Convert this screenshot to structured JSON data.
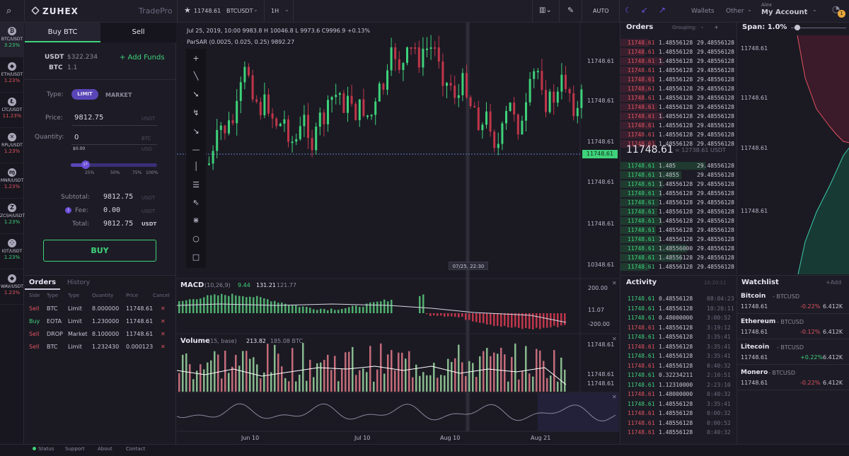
{
  "brand": {
    "name": "ZUHEX",
    "product": "TradePro"
  },
  "header": {
    "price": "11748.61",
    "pair": "BTCUSDT",
    "interval": "1H",
    "auto": "AUTO",
    "nav": [
      "Wallets",
      "Other"
    ],
    "user": "Alex",
    "account": "My Account",
    "badge": "1"
  },
  "coins": [
    {
      "pair": "BTC/USDT",
      "change": "3.23%",
      "dir": "up",
      "icon": "bitcoin-icon",
      "glyph": "₿"
    },
    {
      "pair": "ETH/USDT",
      "change": "1.23%",
      "dir": "down",
      "icon": "ethereum-icon",
      "glyph": "◆"
    },
    {
      "pair": "LTC/USDT",
      "change": "11.23%",
      "dir": "down",
      "icon": "litecoin-icon",
      "glyph": "Ł"
    },
    {
      "pair": "RPL/USDT",
      "change": "1.23%",
      "dir": "down",
      "icon": "ripple-icon",
      "glyph": "✕"
    },
    {
      "pair": "MNR/USDT",
      "change": "1.23%",
      "dir": "down",
      "icon": "monero-icon",
      "glyph": "ɱ"
    },
    {
      "pair": "ZCSH/USDT",
      "change": "1.23%",
      "dir": "up",
      "icon": "zcash-icon",
      "glyph": "Z"
    },
    {
      "pair": "IOT/USDT",
      "change": "1.23%",
      "dir": "up",
      "icon": "iota-icon",
      "glyph": "⁘"
    },
    {
      "pair": "WAV/USDT",
      "change": "1.23%",
      "dir": "down",
      "icon": "waves-icon",
      "glyph": "◆"
    }
  ],
  "trade": {
    "tab_buy": "Buy BTC",
    "tab_sell": "Sell",
    "bal_usdt_label": "USDT",
    "bal_usdt": "$322.234",
    "bal_btc_label": "BTC",
    "bal_btc": "1.1",
    "add_funds": "+ Add Funds",
    "type_label": "Type:",
    "type_limit": "LIMIT",
    "type_market": "MARKET",
    "price_label": "Price:",
    "price": "9812.75",
    "price_unit": "USDT",
    "qty_label": "Quantity:",
    "qty": "0",
    "qty_unit": "BTC",
    "qty_usd": "$0.00",
    "qty_usd_unit": "USD",
    "slider_value": "17",
    "slider_fraction": 0.17,
    "marks": [
      "25%",
      "50%",
      "75%",
      "100%"
    ],
    "subtotal_label": "Subtotal:",
    "subtotal": "9812.75",
    "subtotal_unit": "USDT",
    "fee_label": "Fee:",
    "fee": "0.00",
    "fee_unit": "USDT",
    "total_label": "Total:",
    "total": "9812.75",
    "total_unit": "USDT",
    "buy_button": "BUY"
  },
  "orders": {
    "tab_orders": "Orders",
    "tab_history": "History",
    "headers": [
      "Side",
      "Type",
      "Type",
      "Quantity",
      "Price",
      "Cancel"
    ],
    "rows": [
      {
        "side": "Sell",
        "asset": "BTC",
        "type": "Limit",
        "qty": "8.000000",
        "price": "11748.61"
      },
      {
        "side": "Buy",
        "asset": "EOTA",
        "type": "Limit",
        "qty": "1.230000",
        "price": "11748.61"
      },
      {
        "side": "Sell",
        "asset": "DROP",
        "type": "Market",
        "qty": "8.100000",
        "price": "11748.61"
      },
      {
        "side": "Sell",
        "asset": "BTC",
        "type": "Limit",
        "qty": "1.232430",
        "price": "0.000123"
      }
    ]
  },
  "chart": {
    "info": "Jul 25, 2019, 10:00  9983.8  H 10046.8  L 9973.6  C9996.9  +0.13%",
    "indicator": "ParSAR (0.0025, 0.025, 0.25)  9892.27",
    "price_axis": [
      "11748.61",
      "11748.61",
      "11748.61",
      "11748.61",
      "11748.61",
      "10348.61"
    ],
    "last_price": "11748.61",
    "crosshair_time": "07/25, 22:30",
    "macd_title": "MACD",
    "macd_params": "(10,26,9)",
    "macd_v1": "9.44",
    "macd_v2": "131.21",
    "macd_v3": "121.77",
    "macd_axis": [
      "200.00",
      "11.07",
      "-200.00"
    ],
    "vol_title": "Volume",
    "vol_params": "(15, base)",
    "vol_v1": "213.82",
    "vol_v2": "185.08 BTC",
    "vol_axis": [
      "11748.61",
      "11748.61",
      "11748.61"
    ],
    "dates": [
      "Jun 10",
      "Jul 10",
      "Aug 10",
      "Aug 21"
    ]
  },
  "book": {
    "title": "Orders",
    "grouping": "Grouping:",
    "last": "11748.61",
    "last_sub": "= 12738.61 USDT",
    "asks": [
      [
        "11748.61",
        "1.48556128",
        "29.48556128"
      ],
      [
        "11748.61",
        "1.48556128",
        "29.48556128"
      ],
      [
        "11748.61",
        "1.48556128",
        "29.48556128"
      ],
      [
        "11748.61",
        "1.48556128",
        "29.48556128"
      ],
      [
        "11748.61",
        "1.48556128",
        "29.48556128"
      ],
      [
        "11748.61",
        "1.48556128",
        "29.48556128"
      ],
      [
        "11748.61",
        "1.48556128",
        "29.48556128"
      ],
      [
        "11748.61",
        "1.48556128",
        "29.48556128"
      ],
      [
        "11748.61",
        "1.48556128",
        "29.48556128"
      ],
      [
        "11748.61",
        "1.48556128",
        "29.48556128"
      ],
      [
        "11748.61",
        "1.48556128",
        "29.48556128"
      ],
      [
        "11748.61",
        "1.48556128",
        "29.48556128"
      ]
    ],
    "bids": [
      [
        "11748.61",
        "1.485",
        "29.48556128"
      ],
      [
        "11748.61",
        "1.4855",
        "29.48556128"
      ],
      [
        "11748.61",
        "1.48556128",
        "29.48556128"
      ],
      [
        "11748.61",
        "1.48556128",
        "29.48556128"
      ],
      [
        "11748.61",
        "1.48556128",
        "29.48556128"
      ],
      [
        "11748.61",
        "1.48556128",
        "29.48556128"
      ],
      [
        "11748.61",
        "1.48556128",
        "29.48556128"
      ],
      [
        "11748.61",
        "1.48556128",
        "29.48556128"
      ],
      [
        "11748.61",
        "1.48556128",
        "29.48556128"
      ],
      [
        "11748.61",
        "1.48556000",
        "29.48556128"
      ],
      [
        "11748.61",
        "1.48556128",
        "29.48556128"
      ],
      [
        "11748.61",
        "1.48556128",
        "29.48556128"
      ]
    ]
  },
  "activity": {
    "title": "Activity",
    "time": "10:20:11",
    "rows": [
      [
        "11748.61",
        "0.48556128",
        "08:04:23",
        "up"
      ],
      [
        "11748.61",
        "1.48556128",
        "10:20:11",
        "up"
      ],
      [
        "11748.61",
        "0.48000000",
        "3:00:52",
        "up"
      ],
      [
        "11748.61",
        "1.48556128",
        "3:19:12",
        "down"
      ],
      [
        "11748.61",
        "1.48556128",
        "3:35:41",
        "up"
      ],
      [
        "11748.61",
        "1.48556128",
        "3:35:41",
        "down"
      ],
      [
        "11748.61",
        "1.48556128",
        "3:35:41",
        "up"
      ],
      [
        "11748.61",
        "1.48556128",
        "0:40:32",
        "down"
      ],
      [
        "11748.61",
        "0.32234211",
        "2:10:51",
        "up"
      ],
      [
        "11748.61",
        "1.12310000",
        "2:23:10",
        "up"
      ],
      [
        "11748.61",
        "1.48000000",
        "0:40:32",
        "down"
      ],
      [
        "11748.61",
        "1.48556128",
        "3:35:41",
        "up"
      ],
      [
        "11748.61",
        "1.48556128",
        "0:00:32",
        "down"
      ],
      [
        "11748.61",
        "1.48556128",
        "0:00:52",
        "down"
      ],
      [
        "11748.61",
        "1.48556128",
        "0:40:32",
        "down"
      ]
    ]
  },
  "depth": {
    "title": "Span: 1.0%",
    "levels": [
      "11748.61",
      "11748.61",
      "11748.61",
      "11748.61"
    ]
  },
  "watchlist": {
    "title": "Watchlist",
    "add": "+Add",
    "items": [
      {
        "name": "Bitcoin",
        "pair": "- BTCUSD",
        "price": "11748.61",
        "change": "-0.22%",
        "vol": "6.412K",
        "dir": "down"
      },
      {
        "name": "Ethereum",
        "pair": "- BTCUSD",
        "price": "11748.61",
        "change": "-0.12%",
        "vol": "6.412K",
        "dir": "down"
      },
      {
        "name": "Litecoin",
        "pair": "- BTCUSD",
        "price": "11748.61",
        "change": "+0.22%",
        "vol": "6.412K",
        "dir": "up"
      },
      {
        "name": "Monero",
        "pair": "- BTCUSD",
        "price": "11748.61",
        "change": "-0.22%",
        "vol": "6.412K",
        "dir": "down"
      }
    ]
  },
  "footer": {
    "status": "Status",
    "support": "Support",
    "about": "About",
    "contact": "Contact"
  },
  "colors": {
    "up": "#3ed27a",
    "down": "#e0535e",
    "accent": "#6b4fd8",
    "bg": "#1b1a24"
  }
}
